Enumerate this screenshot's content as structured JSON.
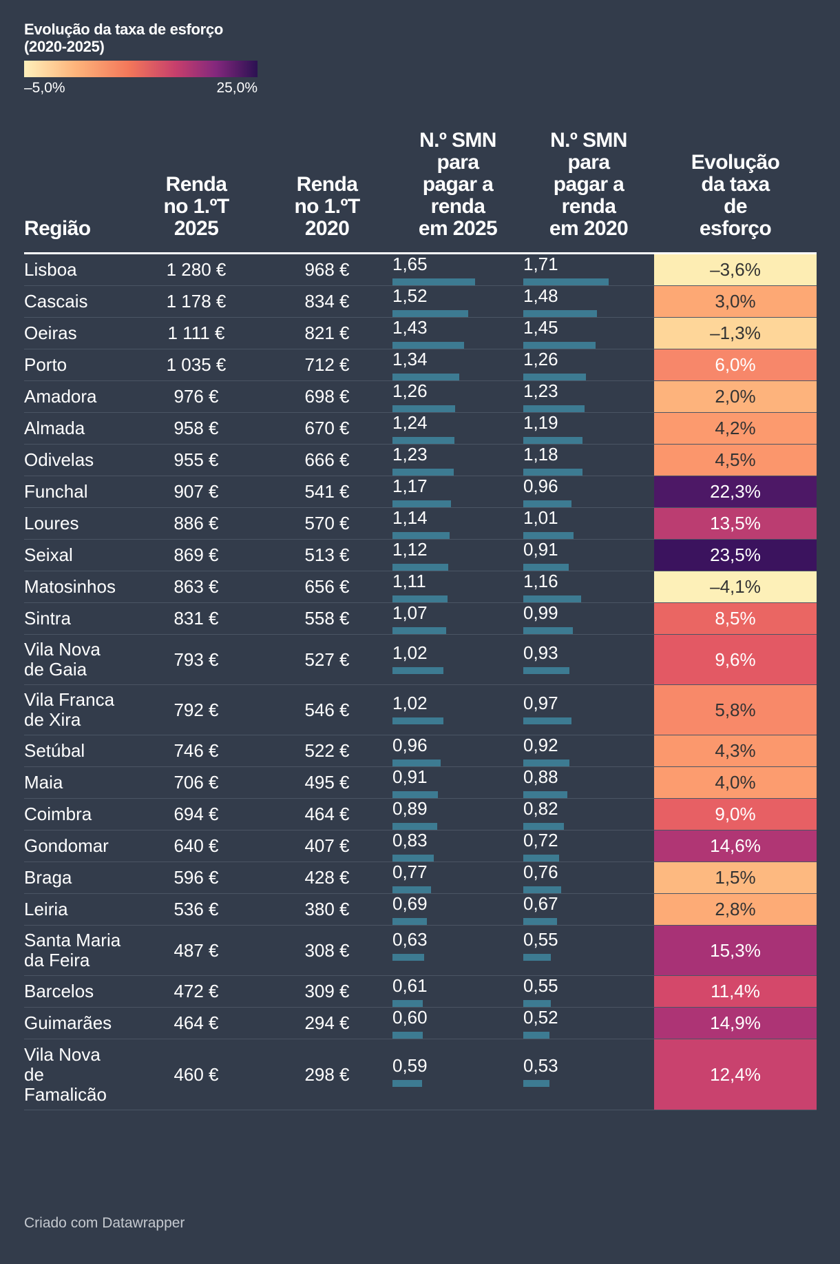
{
  "legend": {
    "title_line1": "Evolução da taxa de esforço",
    "title_line2": "(2020-2025)",
    "min_label": "–5,0%",
    "max_label": "25,0%",
    "min_value": -5.0,
    "max_value": 25.0,
    "colors": [
      "#fef0bb",
      "#fdb47b",
      "#f3775a",
      "#c63f6c",
      "#84287d",
      "#2b1152"
    ]
  },
  "headers": {
    "region": "Região",
    "rent2025": [
      "Renda",
      "no 1.ºT",
      "2025"
    ],
    "rent2020": [
      "Renda",
      "no 1.ºT",
      "2020"
    ],
    "smn2025": [
      "N.º SMN",
      "para",
      "pagar a",
      "renda",
      "em 2025"
    ],
    "smn2020": [
      "N.º SMN",
      "para",
      "pagar a",
      "renda",
      "em 2020"
    ],
    "evo": [
      "Evolução",
      "da taxa",
      "de",
      "esforço"
    ]
  },
  "footer": "Criado com Datawrapper",
  "chart_data": {
    "type": "table",
    "columns": [
      "Região",
      "Renda no 1.ºT 2025",
      "Renda no 1.ºT 2020",
      "N.º SMN para pagar a renda em 2025",
      "N.º SMN para pagar a renda em 2020",
      "Evolução da taxa de esforço"
    ],
    "bar_scale_max": 1.71,
    "rows": [
      {
        "region": [
          "Lisboa"
        ],
        "rent2025": "1 280 €",
        "rent2020": "968 €",
        "smn2025": 1.65,
        "smn2025_label": "1,65",
        "smn2020": 1.71,
        "smn2020_label": "1,71",
        "evo": -3.6,
        "evo_label": "–3,6%",
        "evo_color": "#fdedb3"
      },
      {
        "region": [
          "Cascais"
        ],
        "rent2025": "1 178 €",
        "rent2020": "834 €",
        "smn2025": 1.52,
        "smn2025_label": "1,52",
        "smn2020": 1.48,
        "smn2020_label": "1,48",
        "evo": 3.0,
        "evo_label": "3,0%",
        "evo_color": "#fda874"
      },
      {
        "region": [
          "Oeiras"
        ],
        "rent2025": "1 111 €",
        "rent2020": "821 €",
        "smn2025": 1.43,
        "smn2025_label": "1,43",
        "smn2020": 1.45,
        "smn2020_label": "1,45",
        "evo": -1.3,
        "evo_label": "–1,3%",
        "evo_color": "#fed699"
      },
      {
        "region": [
          "Porto"
        ],
        "rent2025": "1 035 €",
        "rent2020": "712 €",
        "smn2025": 1.34,
        "smn2025_label": "1,34",
        "smn2020": 1.26,
        "smn2020_label": "1,26",
        "evo": 6.0,
        "evo_label": "6,0%",
        "evo_color": "#f7876a"
      },
      {
        "region": [
          "Amadora"
        ],
        "rent2025": "976 €",
        "rent2020": "698 €",
        "smn2025": 1.26,
        "smn2025_label": "1,26",
        "smn2020": 1.23,
        "smn2020_label": "1,23",
        "evo": 2.0,
        "evo_label": "2,0%",
        "evo_color": "#fdb37c"
      },
      {
        "region": [
          "Almada"
        ],
        "rent2025": "958 €",
        "rent2020": "670 €",
        "smn2025": 1.24,
        "smn2025_label": "1,24",
        "smn2020": 1.19,
        "smn2020_label": "1,19",
        "evo": 4.2,
        "evo_label": "4,2%",
        "evo_color": "#fc9a6e"
      },
      {
        "region": [
          "Odivelas"
        ],
        "rent2025": "955 €",
        "rent2020": "666 €",
        "smn2025": 1.23,
        "smn2025_label": "1,23",
        "smn2020": 1.18,
        "smn2020_label": "1,18",
        "evo": 4.5,
        "evo_label": "4,5%",
        "evo_color": "#fb966c"
      },
      {
        "region": [
          "Funchal"
        ],
        "rent2025": "907 €",
        "rent2020": "541 €",
        "smn2025": 1.17,
        "smn2025_label": "1,17",
        "smn2020": 0.96,
        "smn2020_label": "0,96",
        "evo": 22.3,
        "evo_label": "22,3%",
        "evo_color": "#4d1866"
      },
      {
        "region": [
          "Loures"
        ],
        "rent2025": "886 €",
        "rent2020": "570 €",
        "smn2025": 1.14,
        "smn2025_label": "1,14",
        "smn2020": 1.01,
        "smn2020_label": "1,01",
        "evo": 13.5,
        "evo_label": "13,5%",
        "evo_color": "#bb3d71"
      },
      {
        "region": [
          "Seixal"
        ],
        "rent2025": "869 €",
        "rent2020": "513 €",
        "smn2025": 1.12,
        "smn2025_label": "1,12",
        "smn2020": 0.91,
        "smn2020_label": "0,91",
        "evo": 23.5,
        "evo_label": "23,5%",
        "evo_color": "#3b135e"
      },
      {
        "region": [
          "Matosinhos"
        ],
        "rent2025": "863 €",
        "rent2020": "656 €",
        "smn2025": 1.11,
        "smn2025_label": "1,11",
        "smn2020": 1.16,
        "smn2020_label": "1,16",
        "evo": -4.1,
        "evo_label": "–4,1%",
        "evo_color": "#fdf0b8"
      },
      {
        "region": [
          "Sintra"
        ],
        "rent2025": "831 €",
        "rent2020": "558 €",
        "smn2025": 1.07,
        "smn2025_label": "1,07",
        "smn2020": 0.99,
        "smn2020_label": "0,99",
        "evo": 8.5,
        "evo_label": "8,5%",
        "evo_color": "#ea6663"
      },
      {
        "region": [
          "Vila Nova",
          "de Gaia"
        ],
        "rent2025": "793 €",
        "rent2020": "527 €",
        "smn2025": 1.02,
        "smn2025_label": "1,02",
        "smn2020": 0.93,
        "smn2020_label": "0,93",
        "evo": 9.6,
        "evo_label": "9,6%",
        "evo_color": "#e35964"
      },
      {
        "region": [
          "Vila Franca",
          "de Xira"
        ],
        "rent2025": "792 €",
        "rent2020": "546 €",
        "smn2025": 1.02,
        "smn2025_label": "1,02",
        "smn2020": 0.97,
        "smn2020_label": "0,97",
        "evo": 5.8,
        "evo_label": "5,8%",
        "evo_color": "#f88969"
      },
      {
        "region": [
          "Setúbal"
        ],
        "rent2025": "746 €",
        "rent2020": "522 €",
        "smn2025": 0.96,
        "smn2025_label": "0,96",
        "smn2020": 0.92,
        "smn2020_label": "0,92",
        "evo": 4.3,
        "evo_label": "4,3%",
        "evo_color": "#fb986d"
      },
      {
        "region": [
          "Maia"
        ],
        "rent2025": "706 €",
        "rent2020": "495 €",
        "smn2025": 0.91,
        "smn2025_label": "0,91",
        "smn2020": 0.88,
        "smn2020_label": "0,88",
        "evo": 4.0,
        "evo_label": "4,0%",
        "evo_color": "#fc9c6f"
      },
      {
        "region": [
          "Coimbra"
        ],
        "rent2025": "694 €",
        "rent2020": "464 €",
        "smn2025": 0.89,
        "smn2025_label": "0,89",
        "smn2020": 0.82,
        "smn2020_label": "0,82",
        "evo": 9.0,
        "evo_label": "9,0%",
        "evo_color": "#e76064"
      },
      {
        "region": [
          "Gondomar"
        ],
        "rent2025": "640 €",
        "rent2020": "407 €",
        "smn2025": 0.83,
        "smn2025_label": "0,83",
        "smn2020": 0.72,
        "smn2020_label": "0,72",
        "evo": 14.6,
        "evo_label": "14,6%",
        "evo_color": "#b03674"
      },
      {
        "region": [
          "Braga"
        ],
        "rent2025": "596 €",
        "rent2020": "428 €",
        "smn2025": 0.77,
        "smn2025_label": "0,77",
        "smn2020": 0.76,
        "smn2020_label": "0,76",
        "evo": 1.5,
        "evo_label": "1,5%",
        "evo_color": "#fdb980"
      },
      {
        "region": [
          "Leiria"
        ],
        "rent2025": "536 €",
        "rent2020": "380 €",
        "smn2025": 0.69,
        "smn2025_label": "0,69",
        "smn2020": 0.67,
        "smn2020_label": "0,67",
        "evo": 2.8,
        "evo_label": "2,8%",
        "evo_color": "#fdab76"
      },
      {
        "region": [
          "Santa Maria",
          "da Feira"
        ],
        "rent2025": "487 €",
        "rent2020": "308 €",
        "smn2025": 0.63,
        "smn2025_label": "0,63",
        "smn2020": 0.55,
        "smn2020_label": "0,55",
        "evo": 15.3,
        "evo_label": "15,3%",
        "evo_color": "#a83276"
      },
      {
        "region": [
          "Barcelos"
        ],
        "rent2025": "472 €",
        "rent2020": "309 €",
        "smn2025": 0.61,
        "smn2025_label": "0,61",
        "smn2020": 0.55,
        "smn2020_label": "0,55",
        "evo": 11.4,
        "evo_label": "11,4%",
        "evo_color": "#d4486a"
      },
      {
        "region": [
          "Guimarães"
        ],
        "rent2025": "464 €",
        "rent2020": "294 €",
        "smn2025": 0.6,
        "smn2025_label": "0,60",
        "smn2020": 0.52,
        "smn2020_label": "0,52",
        "evo": 14.9,
        "evo_label": "14,9%",
        "evo_color": "#ad3475"
      },
      {
        "region": [
          "Vila Nova",
          "de",
          "Famalicão"
        ],
        "rent2025": "460 €",
        "rent2020": "298 €",
        "smn2025": 0.59,
        "smn2025_label": "0,59",
        "smn2020": 0.53,
        "smn2020_label": "0,53",
        "evo": 12.4,
        "evo_label": "12,4%",
        "evo_color": "#c9426e"
      }
    ]
  }
}
